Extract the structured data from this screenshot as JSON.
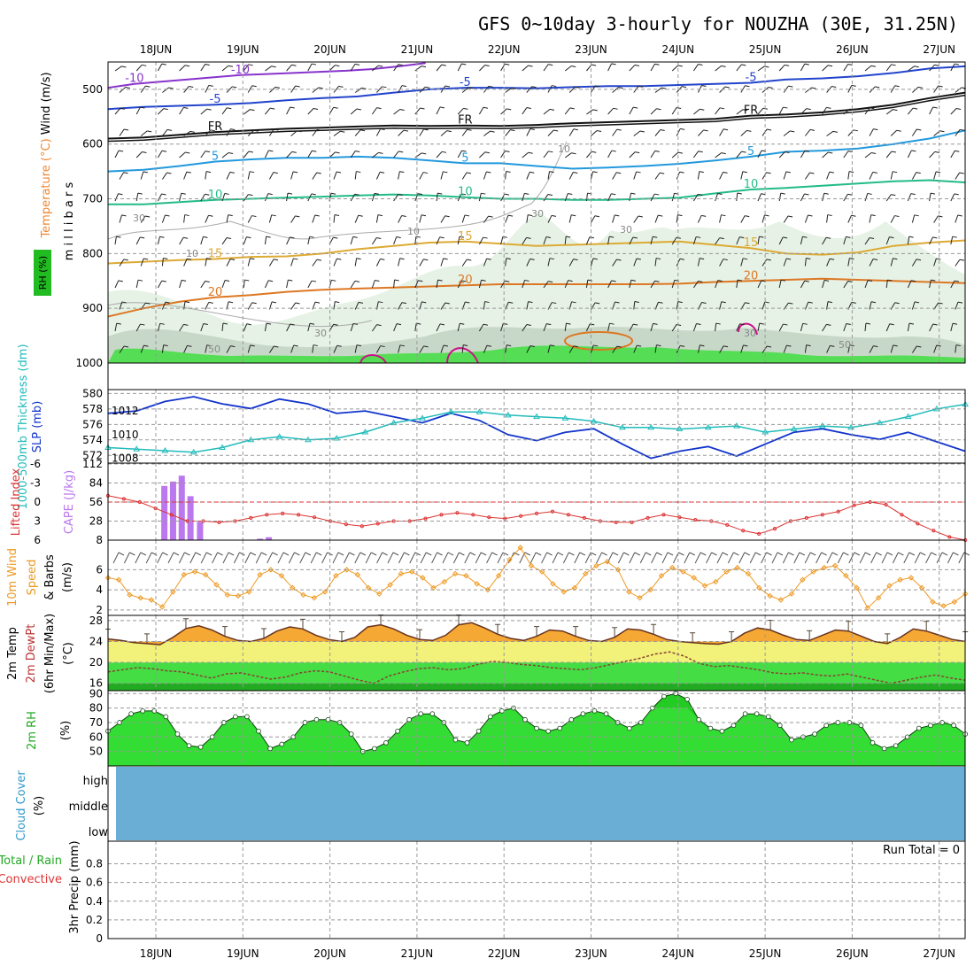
{
  "title": "GFS 0~10day 3-hourly for NOUZHA (30E, 31.25N)",
  "days": [
    "18JUN",
    "19JUN",
    "20JUN",
    "21JUN",
    "22JUN",
    "23JUN",
    "24JUN",
    "25JUN",
    "26JUN",
    "27JUN"
  ],
  "colors": {
    "grid": "#999999",
    "rh_light": "#e6f2e6",
    "rh_mid": "#c8d8c8",
    "rh_dark": "#aaccaa",
    "rh_green": "#55dd55",
    "slp": "#1133cc",
    "thickness": "#22bbbb",
    "cape": "#bb77ee",
    "li": "#dd3333",
    "wind10": "#ee9922",
    "temp_fill": "#f5a833",
    "temp_yellow": "#f2f27a",
    "dew_green": "#44dd44",
    "rh2m": "#22cc22",
    "cloud": "#6aaed6"
  },
  "chart_data": [
    {
      "panel": "upper-air",
      "type": "contour",
      "ylabel": "(millibars)",
      "ylabel_text": "m i l l i b a r s",
      "side_labels": {
        "rh": "RH (%)",
        "temp": "Temperature (°C)",
        "wind": "Wind (m/s)"
      },
      "yticks": [
        500,
        600,
        700,
        800,
        900,
        1000
      ],
      "ylim": [
        450,
        1000
      ],
      "isotherms": [
        {
          "label": "-10",
          "color": "#8833cc",
          "p": [
            497,
            490,
            486,
            482,
            478,
            474,
            472,
            470,
            468,
            466,
            463,
            458,
            452
          ],
          "x_end_day": 3.1
        },
        {
          "label": "-5",
          "color": "#2244cc",
          "p": [
            536,
            532,
            530,
            528,
            525,
            520,
            516,
            513,
            506,
            500,
            497,
            497,
            498,
            496,
            494,
            494,
            492,
            490,
            488,
            482,
            480,
            476,
            470,
            462,
            458
          ]
        },
        {
          "label": "FR",
          "color": "#111111",
          "p": [
            590,
            588,
            583,
            578,
            575,
            572,
            570,
            568,
            566,
            567,
            566,
            567,
            565,
            562,
            560,
            558,
            556,
            554,
            548,
            546,
            542,
            536,
            528,
            516,
            506
          ]
        },
        {
          "label": "5",
          "color": "#2299dd",
          "p": [
            650,
            647,
            640,
            632,
            628,
            625,
            625,
            623,
            625,
            630,
            635,
            635,
            640,
            645,
            643,
            640,
            636,
            630,
            623,
            614,
            612,
            608,
            600,
            590,
            575
          ]
        },
        {
          "label": "10",
          "color": "#22bb88",
          "p": [
            710,
            710,
            706,
            702,
            700,
            698,
            696,
            694,
            692,
            694,
            697,
            700,
            700,
            702,
            702,
            700,
            698,
            690,
            683,
            680,
            676,
            672,
            668,
            666,
            670
          ]
        },
        {
          "label": "15",
          "color": "#ddaa33",
          "p": [
            818,
            815,
            812,
            810,
            806,
            805,
            800,
            792,
            786,
            780,
            778,
            782,
            786,
            784,
            782,
            780,
            778,
            784,
            790,
            800,
            802,
            798,
            786,
            780,
            776
          ]
        },
        {
          "label": "20",
          "color": "#dd7722",
          "p": [
            915,
            900,
            888,
            880,
            876,
            870,
            866,
            864,
            862,
            860,
            858,
            856,
            856,
            856,
            856,
            856,
            855,
            852,
            850,
            848,
            846,
            848,
            850,
            852,
            854
          ]
        }
      ],
      "contour_labels": [
        "30",
        "30",
        "30",
        "50",
        "50",
        "30",
        "10",
        "10",
        "30",
        "10",
        "30",
        "50"
      ]
    },
    {
      "panel": "slp-thickness",
      "type": "line",
      "ylabel_left": "1000-500mb Thickness (dm)",
      "ylabel_right": "SLP (mb)",
      "left_ticks": [
        572,
        574,
        576,
        578,
        580
      ],
      "right_ticks": [
        1008,
        1010,
        1012
      ],
      "series": [
        {
          "name": "SLP (mb)",
          "values": [
            1011.8,
            1012.0,
            1012.8,
            1013.2,
            1012.6,
            1012.2,
            1013.0,
            1012.6,
            1011.8,
            1012.0,
            1011.5,
            1011.0,
            1011.8,
            1011.2,
            1010.0,
            1009.5,
            1010.2,
            1010.5,
            1009.2,
            1008.0,
            1008.6,
            1009.0,
            1008.2,
            1009.2,
            1010.2,
            1010.5,
            1010.0,
            1009.6,
            1010.2,
            1009.4,
            1008.6
          ]
        },
        {
          "name": "Thickness (dm)",
          "values": [
            573.0,
            572.8,
            572.6,
            572.4,
            573.0,
            574.0,
            574.4,
            574.0,
            574.2,
            575.0,
            576.2,
            576.8,
            577.6,
            577.6,
            577.2,
            577.0,
            576.8,
            576.4,
            575.6,
            575.6,
            575.4,
            575.6,
            575.8,
            575.0,
            575.4,
            575.8,
            575.6,
            576.2,
            577.0,
            578.0,
            578.6
          ]
        }
      ]
    },
    {
      "panel": "cape-li",
      "type": "bar",
      "ylabel_left": "Lifted Index",
      "ylabel_right": "CAPE (J/kg)",
      "li_ticks": [
        "-6",
        "-3",
        "0",
        "3",
        "6"
      ],
      "cape_ticks": [
        8,
        28,
        56,
        84,
        112
      ],
      "cape_bars": [
        {
          "day": 0.52,
          "v": 82
        },
        {
          "day": 0.62,
          "v": 88
        },
        {
          "day": 0.72,
          "v": 96
        },
        {
          "day": 0.82,
          "v": 68
        },
        {
          "day": 0.93,
          "v": 33
        },
        {
          "day": 1.62,
          "v": 10
        },
        {
          "day": 1.72,
          "v": 12
        }
      ],
      "lifted_index": [
        -1.0,
        -0.5,
        0,
        1,
        2,
        3,
        3,
        3.2,
        3,
        2.5,
        2,
        1.8,
        2,
        2.4,
        3,
        3.5,
        3.8,
        3.4,
        3,
        3,
        2.6,
        2,
        1.7,
        2,
        2.4,
        2.6,
        2.2,
        1.8,
        1.5,
        2,
        2.5,
        3,
        3.2,
        3.2,
        2.5,
        2,
        2.4,
        2.8,
        3,
        3.6,
        4.5,
        5,
        4.2,
        3,
        2.5,
        2,
        1.5,
        0.5,
        0,
        0.4,
        2,
        3.4,
        4.5,
        5.5,
        6
      ]
    },
    {
      "panel": "wind10m",
      "type": "line",
      "ylabel": "10m Wind Speed & Barbs (m/s)",
      "yticks": [
        2,
        4,
        6
      ],
      "values": [
        5.2,
        5.0,
        3.5,
        3.2,
        3.0,
        2.3,
        3.8,
        5.5,
        5.8,
        5.5,
        4.5,
        3.5,
        3.4,
        3.8,
        5.5,
        6.0,
        5.4,
        4.2,
        3.5,
        3.2,
        3.8,
        5.4,
        6.0,
        5.5,
        4.2,
        3.6,
        4.5,
        5.6,
        5.8,
        5.2,
        4.2,
        4.8,
        5.6,
        5.4,
        4.6,
        4.0,
        5.4,
        7.0,
        8.2,
        6.4,
        5.8,
        4.6,
        3.8,
        4.2,
        5.6,
        6.4,
        6.8,
        6.0,
        3.8,
        3.2,
        4.0,
        5.4,
        6.2,
        5.8,
        5.2,
        4.4,
        4.8,
        5.8,
        6.2,
        5.6,
        4.2,
        3.4,
        3.0,
        3.6,
        5.0,
        5.8,
        6.2,
        6.4,
        5.4,
        4.2,
        2.2,
        3.2,
        4.4,
        5.0,
        5.2,
        4.2,
        2.8,
        2.4,
        2.8,
        3.6
      ]
    },
    {
      "panel": "temp2m",
      "type": "area",
      "ylabel": "2m Temp 2m DewPt (6hr Min/Max) (°C)",
      "ylabel_lines": [
        "2m Temp",
        "2m DewPt",
        "(6hr Min/Max)",
        "(°C)"
      ],
      "yticks": [
        16,
        20,
        24,
        28
      ],
      "temp": [
        24.5,
        24.2,
        23.8,
        23.6,
        23.4,
        24.8,
        26.5,
        27.0,
        26.2,
        25.0,
        24.2,
        24.0,
        24.6,
        26.0,
        26.8,
        26.4,
        25.2,
        24.4,
        24.0,
        24.8,
        26.8,
        27.2,
        26.4,
        25.2,
        24.4,
        24.2,
        25.2,
        27.2,
        27.6,
        26.6,
        25.4,
        24.6,
        24.2,
        25.0,
        26.2,
        26.0,
        25.0,
        24.2,
        24.0,
        24.8,
        26.4,
        26.2,
        25.4,
        24.4,
        24.0,
        23.8,
        23.6,
        23.5,
        24.0,
        25.6,
        26.6,
        26.2,
        25.2,
        24.4,
        24.2,
        25.2,
        26.2,
        26.0,
        25.0,
        24.0,
        23.6,
        24.8,
        26.4,
        26.0,
        25.2,
        24.4,
        24.0
      ],
      "dewpt": [
        18.2,
        18.6,
        19.0,
        18.8,
        18.4,
        18.2,
        17.6,
        17.0,
        17.8,
        18.0,
        17.4,
        16.8,
        17.2,
        18.0,
        18.4,
        18.2,
        17.4,
        16.6,
        16.0,
        17.4,
        18.2,
        18.8,
        19.0,
        18.6,
        18.8,
        19.6,
        20.2,
        20.0,
        19.6,
        19.4,
        19.0,
        18.8,
        18.6,
        19.0,
        19.6,
        20.2,
        20.8,
        21.6,
        22.0,
        21.2,
        19.8,
        19.2,
        19.4,
        19.0,
        18.6,
        18.0,
        17.8,
        18.0,
        17.6,
        17.4,
        17.8,
        17.2,
        16.6,
        16.0,
        16.6,
        17.2,
        17.6,
        17.0,
        16.6
      ]
    },
    {
      "panel": "rh2m",
      "type": "area",
      "ylabel": "2m RH (%)",
      "yticks": [
        50,
        60,
        70,
        80,
        90
      ],
      "values": [
        64,
        70,
        76,
        78,
        78,
        74,
        62,
        54,
        53,
        60,
        70,
        74,
        74,
        64,
        52,
        55,
        60,
        70,
        72,
        72,
        70,
        62,
        50,
        52,
        56,
        64,
        72,
        76,
        76,
        70,
        58,
        56,
        64,
        74,
        78,
        80,
        72,
        66,
        64,
        66,
        72,
        76,
        78,
        76,
        70,
        66,
        70,
        80,
        88,
        90,
        86,
        72,
        66,
        64,
        68,
        76,
        76,
        74,
        68,
        58,
        60,
        62,
        68,
        70,
        70,
        68,
        56,
        52,
        54,
        60,
        66,
        68,
        70,
        68,
        62
      ]
    },
    {
      "panel": "cloud",
      "type": "heatmap",
      "ylabel": "Cloud Cover (%)",
      "levels": [
        "high",
        "middle",
        "low"
      ]
    },
    {
      "panel": "precip",
      "type": "bar",
      "ylabel_left": "Total / Rain Convective",
      "ylabel_right": "3hr Precip (mm)",
      "yticks": [
        "0",
        "0.2",
        "0.4",
        "0.6",
        "0.8"
      ],
      "run_total": "Run Total = 0",
      "values": []
    }
  ]
}
